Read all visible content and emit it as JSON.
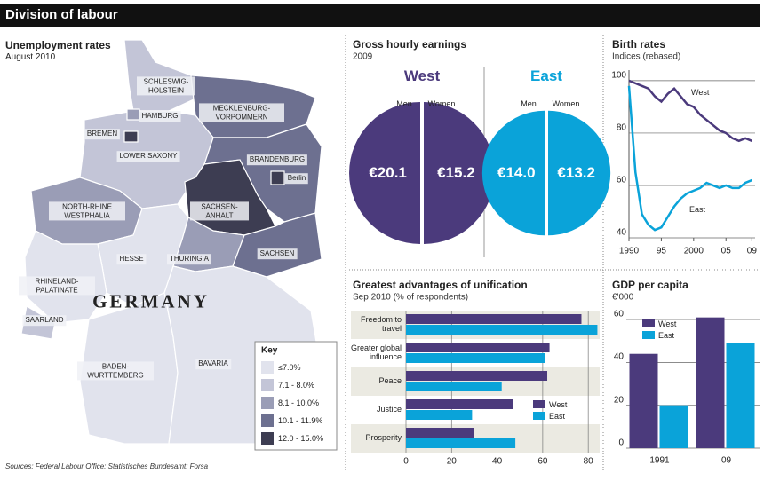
{
  "header": {
    "title": "Division of labour"
  },
  "map": {
    "title": "Unemployment rates",
    "subtitle": "August 2010",
    "country": "GERMANY",
    "key_title": "Key",
    "key": [
      {
        "label": "≤7.0%",
        "color": "#e1e3ed"
      },
      {
        "label": "7.1 - 8.0%",
        "color": "#c3c5d7"
      },
      {
        "label": "8.1 - 10.0%",
        "color": "#9a9db6"
      },
      {
        "label": "10.1 - 11.9%",
        "color": "#6d7090"
      },
      {
        "label": "12.0 - 15.0%",
        "color": "#3d3d52"
      }
    ],
    "states": [
      {
        "name": "SCHLESWIG-HOLSTEIN",
        "rate": "7.1 - 8.0%"
      },
      {
        "name": "HAMBURG",
        "rate": "8.1 - 10.0%"
      },
      {
        "name": "MECKLENBURG-VORPOMMERN",
        "rate": "10.1 - 11.9%"
      },
      {
        "name": "BREMEN",
        "rate": "12.0 - 15.0%"
      },
      {
        "name": "LOWER SAXONY",
        "rate": "7.1 - 8.0%"
      },
      {
        "name": "BRANDENBURG",
        "rate": "10.1 - 11.9%"
      },
      {
        "name": "Berlin",
        "rate": "12.0 - 15.0%"
      },
      {
        "name": "NORTH-RHINE WESTPHALIA",
        "rate": "8.1 - 10.0%"
      },
      {
        "name": "SACHSEN-ANHALT",
        "rate": "12.0 - 15.0%"
      },
      {
        "name": "HESSE",
        "rate": "≤7.0%"
      },
      {
        "name": "THURINGIA",
        "rate": "8.1 - 10.0%"
      },
      {
        "name": "SACHSEN",
        "rate": "10.1 - 11.9%"
      },
      {
        "name": "RHINELAND-PALATINATE",
        "rate": "≤7.0%"
      },
      {
        "name": "SAARLAND",
        "rate": "7.1 - 8.0%"
      },
      {
        "name": "BADEN-WURTTEMBERG",
        "rate": "≤7.0%"
      },
      {
        "name": "BAVARIA",
        "rate": "≤7.0%"
      }
    ]
  },
  "chart_data": [
    {
      "type": "halves",
      "title": "Gross hourly earnings",
      "subtitle": "2009",
      "categories": [
        "Men",
        "Women"
      ],
      "series": [
        {
          "name": "West",
          "color": "#4b3a7c",
          "values": [
            20.1,
            15.2
          ],
          "value_labels": [
            "€20.1",
            "€15.2"
          ]
        },
        {
          "name": "East",
          "color": "#0aa3d9",
          "values": [
            14.0,
            13.2
          ],
          "value_labels": [
            "€14.0",
            "€13.2"
          ]
        }
      ]
    },
    {
      "type": "line",
      "title": "Birth rates",
      "subtitle": "Indices (rebased)",
      "x": [
        1990,
        1991,
        1992,
        1993,
        1994,
        1995,
        1996,
        1997,
        1998,
        1999,
        2000,
        2001,
        2002,
        2003,
        2004,
        2005,
        2006,
        2007,
        2008,
        2009
      ],
      "series": [
        {
          "name": "West",
          "color": "#4b3a7c",
          "values": [
            100,
            99,
            98,
            97,
            94,
            92,
            95,
            97,
            94,
            91,
            90,
            87,
            85,
            83,
            81,
            80,
            78,
            77,
            78,
            77
          ]
        },
        {
          "name": "East",
          "color": "#0aa3d9",
          "values": [
            98,
            65,
            49,
            45,
            43,
            44,
            48,
            52,
            55,
            57,
            58,
            59,
            61,
            60,
            59,
            60,
            59,
            59,
            61,
            62
          ]
        }
      ],
      "xlim": [
        1990,
        2009.5
      ],
      "ylim": [
        40,
        102
      ],
      "xticks": [
        {
          "value": 1990,
          "label": "1990"
        },
        {
          "value": 1995,
          "label": "95"
        },
        {
          "value": 2000,
          "label": "2000"
        },
        {
          "value": 2005,
          "label": "05"
        },
        {
          "value": 2009,
          "label": "09"
        }
      ],
      "yticks": [
        40,
        60,
        80,
        100
      ],
      "grid": true
    },
    {
      "type": "hbar",
      "title": "Greatest advantages of unification",
      "subtitle": "Sep 2010 (% of respondents)",
      "categories": [
        "Freedom to travel",
        "Greater global influence",
        "Peace",
        "Justice",
        "Prosperity"
      ],
      "series": [
        {
          "name": "West",
          "color": "#4b3a7c",
          "values": [
            77,
            63,
            62,
            47,
            30
          ]
        },
        {
          "name": "East",
          "color": "#0aa3d9",
          "values": [
            84,
            61,
            42,
            29,
            48
          ]
        }
      ],
      "xlim": [
        0,
        85
      ],
      "xticks": [
        0,
        20,
        40,
        60,
        80
      ],
      "grid": true,
      "legend": "lower right"
    },
    {
      "type": "bar",
      "title": "GDP per capita",
      "subtitle": "€'000",
      "categories": [
        "1991",
        "09"
      ],
      "series": [
        {
          "name": "West",
          "color": "#4b3a7c",
          "values": [
            44,
            61
          ]
        },
        {
          "name": "East",
          "color": "#0aa3d9",
          "values": [
            20,
            49
          ]
        }
      ],
      "ylim": [
        0,
        65
      ],
      "yticks": [
        0,
        20,
        40,
        60
      ],
      "grid": true,
      "legend": "upper left"
    }
  ],
  "sources": "Sources: Federal Labour Office; Statistisches Bundesamt; Forsa"
}
